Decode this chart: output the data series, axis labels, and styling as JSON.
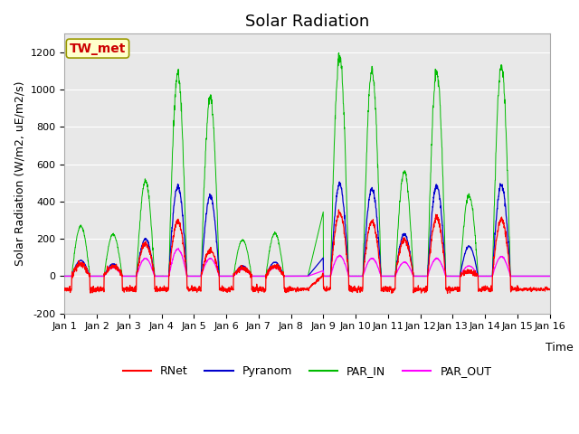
{
  "title": "Solar Radiation",
  "ylabel": "Solar Radiation (W/m2, uE/m2/s)",
  "xlabel": "Time",
  "ylim": [
    -200,
    1300
  ],
  "yticks": [
    -200,
    0,
    200,
    400,
    600,
    800,
    1000,
    1200
  ],
  "xlim": [
    0,
    15
  ],
  "xtick_labels": [
    "Jan 1",
    "Jan 2",
    "Jan 3",
    "Jan 4",
    "Jan 5",
    "Jan 6",
    "Jan 7",
    "Jan 8",
    "Jan 9",
    "Jan 10",
    "Jan 11",
    "Jan 12",
    "Jan 13",
    "Jan 14",
    "Jan 15",
    "Jan 16"
  ],
  "series_colors": {
    "RNet": "#ff0000",
    "Pyranom": "#0000cd",
    "PAR_IN": "#00bb00",
    "PAR_OUT": "#ff00ff"
  },
  "box_label": "TW_met",
  "box_facecolor": "#ffffcc",
  "box_edgecolor": "#999900",
  "box_textcolor": "#cc0000",
  "background_color": "#e8e8e8",
  "title_fontsize": 13,
  "axis_label_fontsize": 9,
  "tick_fontsize": 8,
  "legend_fontsize": 9,
  "figsize": [
    6.4,
    4.8
  ],
  "dpi": 100
}
